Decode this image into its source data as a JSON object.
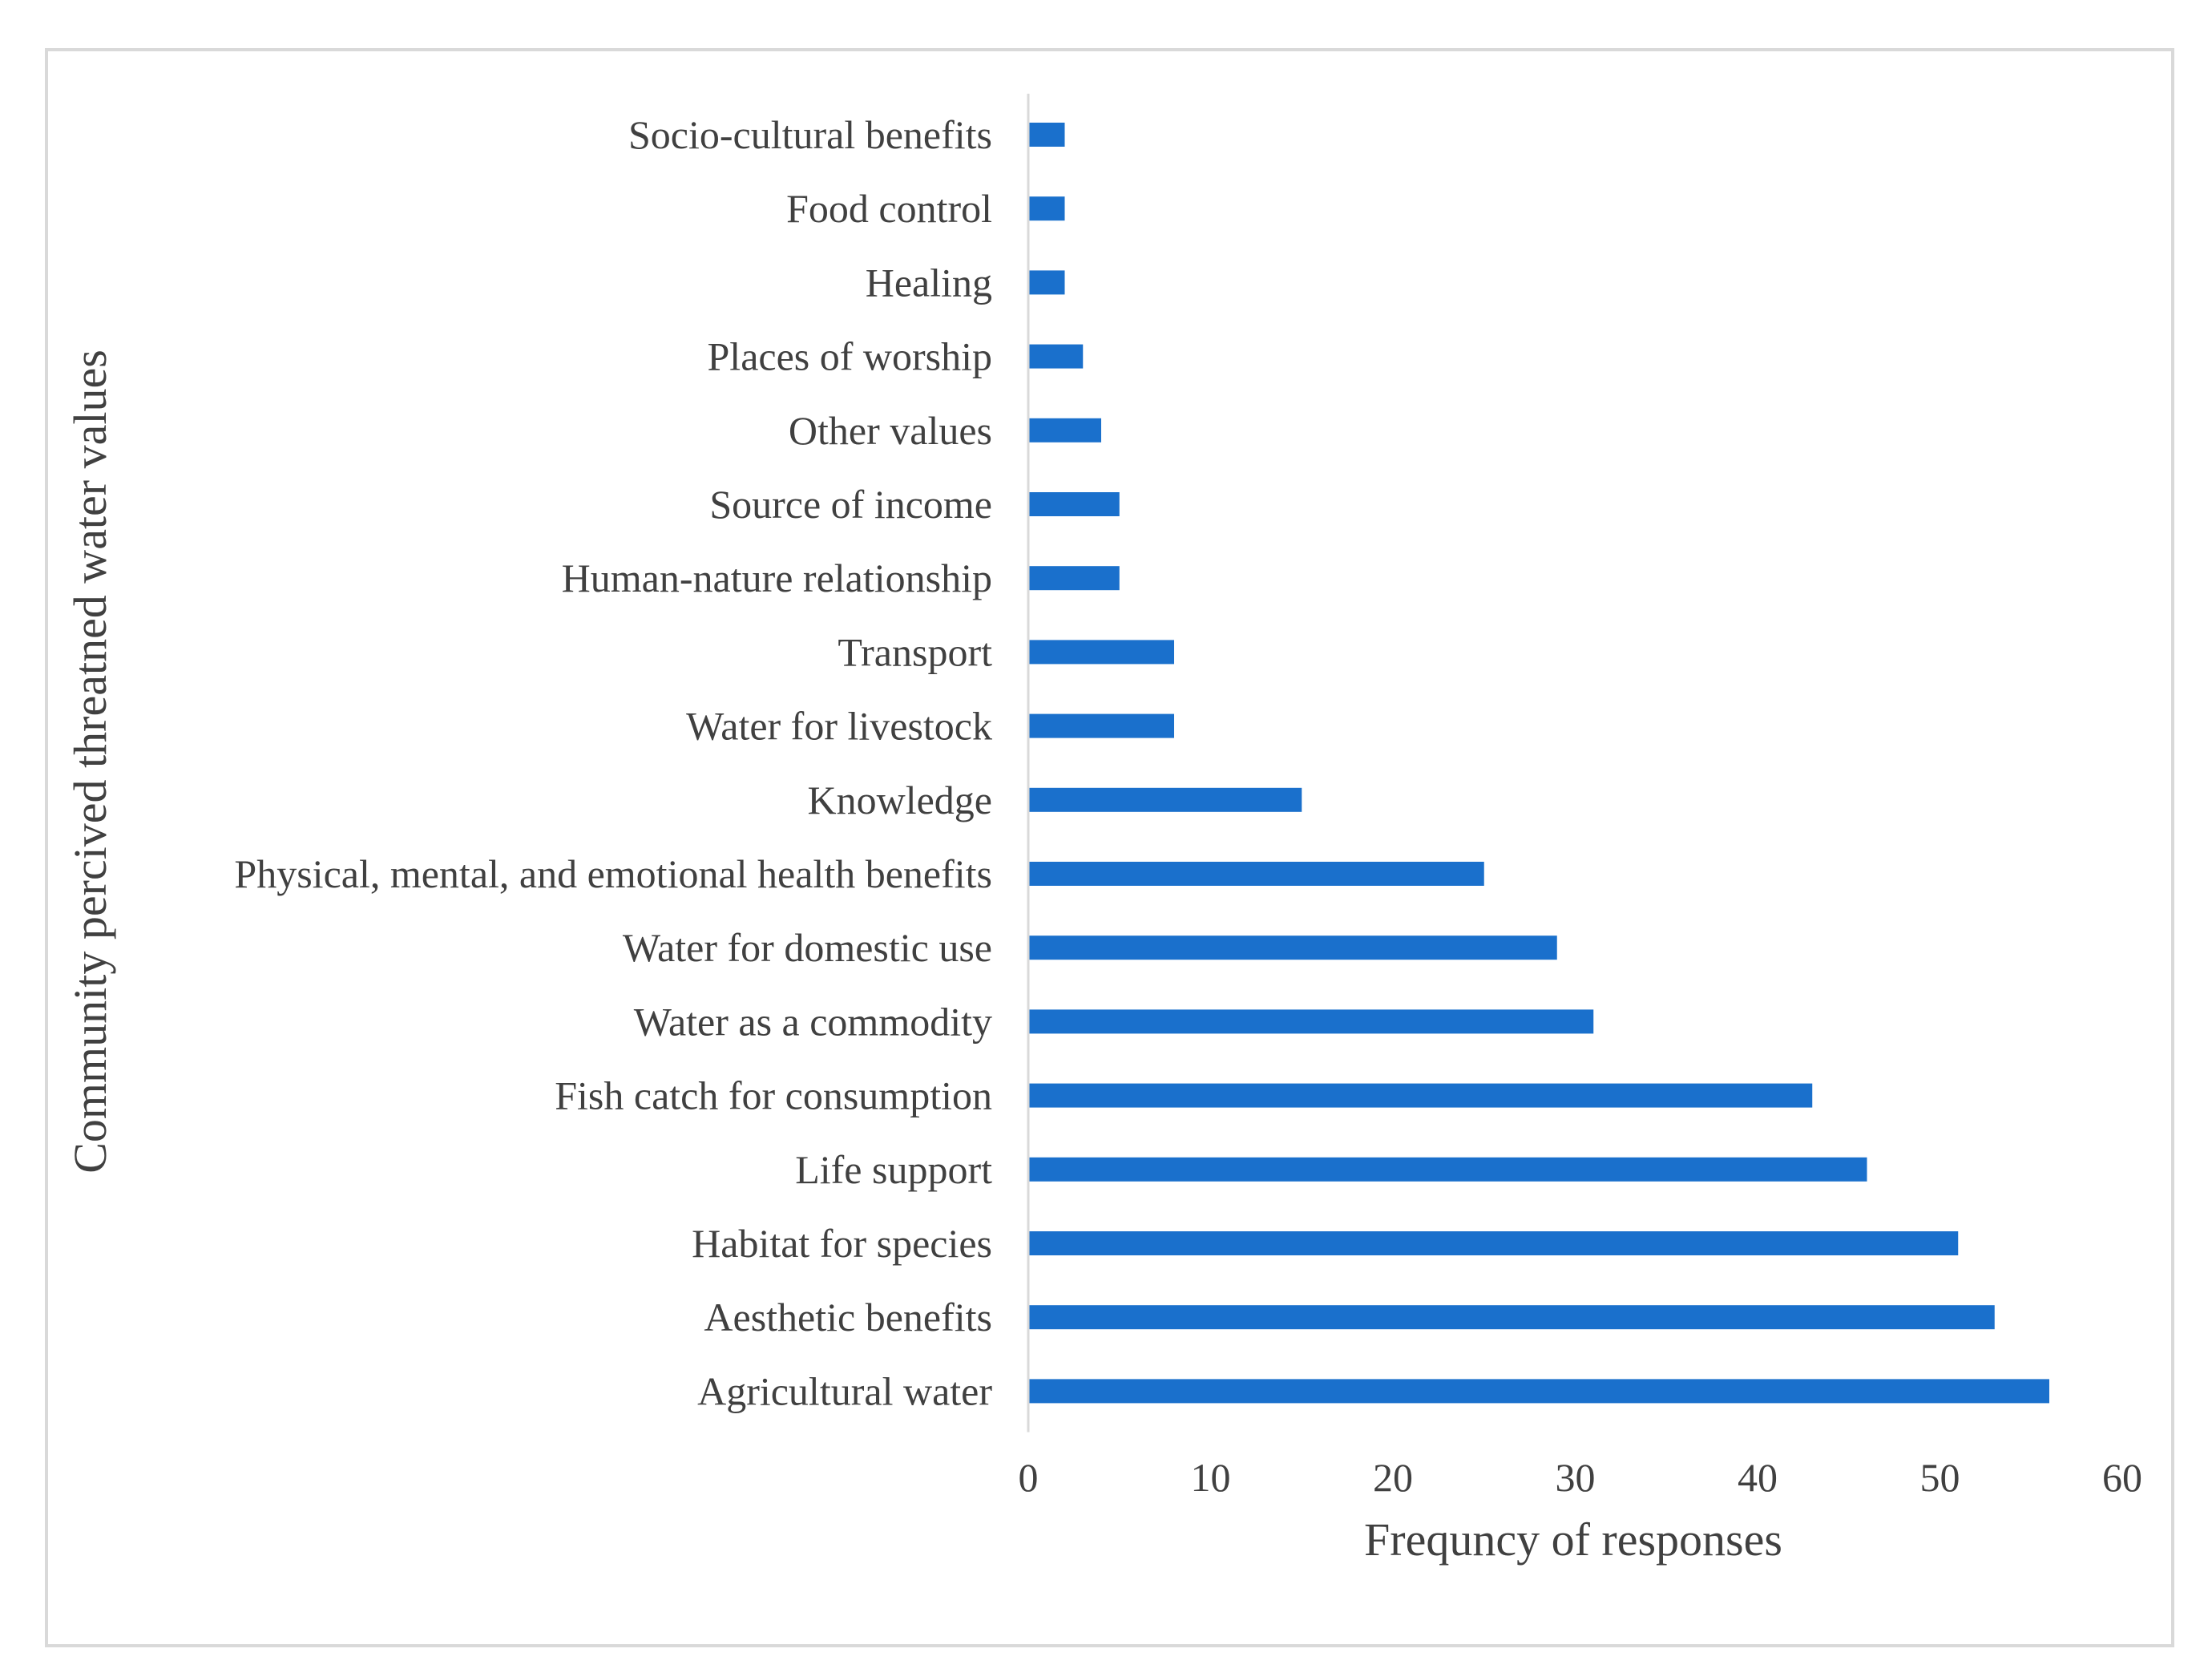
{
  "chart_data": {
    "type": "bar",
    "orientation": "horizontal",
    "title": "",
    "xlabel": "Frequncy of responses",
    "ylabel": "Community percived threatned water values",
    "xlim": [
      0,
      60
    ],
    "xticks": [
      0,
      10,
      20,
      30,
      40,
      50,
      60
    ],
    "grid": false,
    "bar_color": "#1a70cc",
    "categories": [
      "Socio-cultural benefits",
      "Food control",
      "Healing",
      "Places of worship",
      "Other values",
      "Source of income",
      "Human-nature relationship",
      "Transport",
      "Water for livestock",
      "Knowledge",
      "Physical, mental, and emotional health benefits",
      "Water for domestic use",
      "Water as a commodity",
      "Fish catch for consumption",
      "Life support",
      "Habitat for species",
      "Aesthetic benefits",
      "Agricultural water"
    ],
    "values": [
      2,
      2,
      2,
      3,
      4,
      5,
      5,
      8,
      8,
      15,
      25,
      29,
      31,
      43,
      46,
      51,
      53,
      56
    ]
  }
}
